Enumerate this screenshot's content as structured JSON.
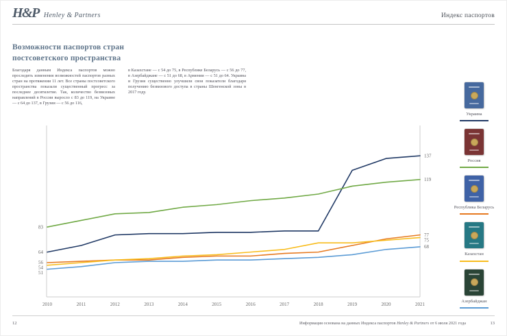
{
  "header": {
    "logo_monogram": "H&P",
    "logo_wordmark": "Henley & Partners",
    "page_label": "Индекс паспортов"
  },
  "title": "Возможности паспортов стран постсоветского пространства",
  "body": {
    "col1": "Благодаря данным Индекса паспортов можно проследить изменения возможностей паспортов разных стран на протяжении 11 лет. Все страны постсоветского пространства показали существенный прогресс за последнее десятилетие. Так, количество безвизовых направлений в России выросло с 83 до 119, на Украине — с 64 до 137, в Грузии — с 56 до 116,",
    "col2": "в Казахстане — с 54 до 75, в Республике Беларусь — с 56 до 77, в Азербайджане — с 51 до 68, в Армении — с 51 до 64. Украина и Грузия существенно улучшили свои показатели благодаря получению безвизового доступа в страны Шенгенской зоны в 2017 году."
  },
  "chart_data": {
    "type": "line",
    "title": "",
    "xlabel": "",
    "ylabel": "",
    "x": [
      "2010",
      "2011",
      "2012",
      "2013",
      "2014",
      "2015",
      "2016",
      "2017",
      "2018",
      "2019",
      "2020",
      "2021"
    ],
    "ylim": [
      30,
      160
    ],
    "grid": false,
    "legend_position": "right-sidebar",
    "axis_color": "#cccccc",
    "label_color": "#666666",
    "series": [
      {
        "name": "Украина",
        "color": "#1F3864",
        "passport_color": "#46699E",
        "values": [
          64,
          69,
          77,
          78,
          78,
          79,
          79,
          80,
          80,
          126,
          135,
          137
        ],
        "start_label": "64",
        "end_label": "137"
      },
      {
        "name": "Россия",
        "color": "#70A945",
        "passport_color": "#7A3434",
        "values": [
          83,
          88,
          93,
          94,
          98,
          100,
          103,
          105,
          108,
          114,
          117,
          119
        ],
        "start_label": "83",
        "end_label": "119"
      },
      {
        "name": "Республика Беларусь",
        "color": "#E6791F",
        "passport_color": "#3F62A6",
        "values": [
          56,
          57,
          58,
          58,
          60,
          61,
          61,
          63,
          64,
          69,
          74,
          77
        ],
        "start_label": "56",
        "end_label": "77"
      },
      {
        "name": "Казахстан",
        "color": "#F8BC1C",
        "passport_color": "#267884",
        "values": [
          54,
          56,
          58,
          59,
          61,
          62,
          64,
          66,
          71,
          71,
          73,
          75
        ],
        "start_label": "54",
        "end_label": "75"
      },
      {
        "name": "Азербайджан",
        "color": "#5B9BD5",
        "passport_color": "#2A4436",
        "values": [
          51,
          53,
          56,
          57,
          57,
          58,
          58,
          59,
          60,
          62,
          66,
          68
        ],
        "start_label": "51",
        "end_label": "68"
      }
    ]
  },
  "footer": {
    "page_left": "12",
    "note_prefix": "Информация основана на данных Индекса паспортов ",
    "note_brand": "Henley & Partners",
    "note_suffix": " от 6 июля 2021 года",
    "page_right": "13"
  }
}
